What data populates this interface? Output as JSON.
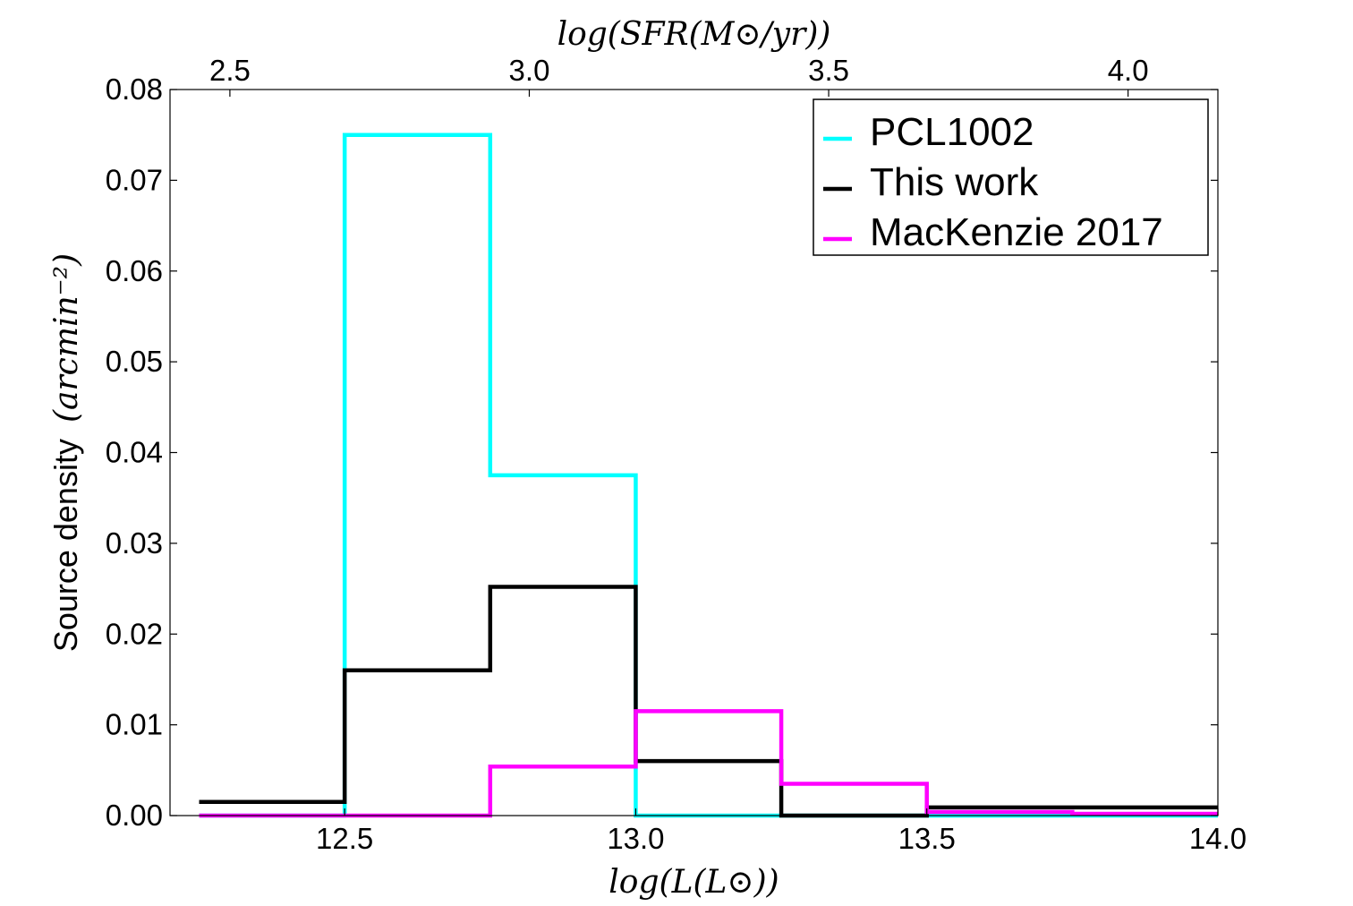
{
  "chart_data": {
    "type": "line",
    "step": true,
    "xlabel": "log(L(L⊙))",
    "x2label": "log(SFR(M⊙/yr))",
    "ylabel": "Source density",
    "ylabel_unit": "(arcmin⁻²)",
    "xlim": [
      12.2,
      14.0
    ],
    "ylim": [
      0.0,
      0.08
    ],
    "x2lim": [
      2.4,
      4.15
    ],
    "xticks": [
      "12.5",
      "13.0",
      "13.5",
      "14.0"
    ],
    "xtick_values": [
      12.5,
      13.0,
      13.5,
      14.0
    ],
    "x2ticks": [
      "2.5",
      "3.0",
      "3.5",
      "4.0"
    ],
    "x2tick_values": [
      2.5,
      3.0,
      3.5,
      4.0
    ],
    "yticks": [
      "0.00",
      "0.01",
      "0.02",
      "0.03",
      "0.04",
      "0.05",
      "0.06",
      "0.07",
      "0.08"
    ],
    "ytick_values": [
      0.0,
      0.01,
      0.02,
      0.03,
      0.04,
      0.05,
      0.06,
      0.07,
      0.08
    ],
    "bin_edges": [
      12.25,
      12.5,
      12.75,
      13.0,
      13.25,
      13.5,
      13.75,
      14.0
    ],
    "grid": false,
    "legend_position": "top-right",
    "series": [
      {
        "name": "PCL1002",
        "color": "#00ffff",
        "values": [
          0.0,
          0.075,
          0.0375,
          0.0,
          0.0,
          0.0,
          0.0
        ]
      },
      {
        "name": "This work",
        "color": "#000000",
        "values": [
          0.0015,
          0.016,
          0.0252,
          0.006,
          0.0,
          0.0009,
          0.0009
        ]
      },
      {
        "name": "MacKenzie 2017",
        "color": "#ff00ff",
        "values": [
          0.0,
          0.0,
          0.0054,
          0.0115,
          0.0035,
          0.0004,
          0.0002
        ]
      }
    ]
  }
}
